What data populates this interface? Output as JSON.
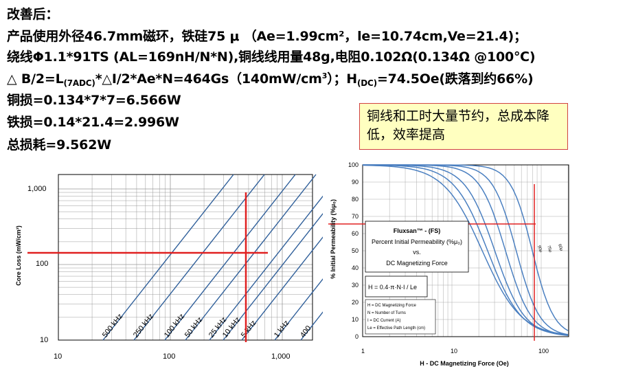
{
  "text": {
    "line1": "改善后：",
    "line2": "产品使用外径46.7mm磁环，铁硅75 μ （Ae=1.99cm²，le=10.74cm,Ve=21.4)；",
    "line3": "绕线Φ1.1*91TS (AL=169nH/N*N),铜线线用量48g,电阻0.102Ω(0.134Ω @100℃)",
    "line4a": "△ B/2=L",
    "line4sub": "(7ADC)",
    "line4b": "*△I/2*Ae*N=464Gs（140mW/cm",
    "line4sup": "3",
    "line4c": "）；H",
    "line4sub2": "(DC)",
    "line4d": "=74.5Oe(跌落到约66%)",
    "line5": "铜损=0.134*7*7=6.566W",
    "line6": "铁损=0.14*21.4=2.996W",
    "line7": "总损耗=9.562W",
    "note": "铜线和工时大量节约，总成本降低，效率提高"
  },
  "chart_left": {
    "ylabel": "Core Loss (mW/cm³)",
    "yticks": [
      "1,000",
      "100",
      "10"
    ],
    "xticks": [
      "10",
      "100",
      "1,000"
    ],
    "freq_labels": [
      "500 kHz",
      "250 kHz",
      "100 kHz",
      "50 kHz",
      "25 kHz",
      "10 kHz",
      "5 kHz",
      "1 kHz",
      "400"
    ]
  },
  "chart_right": {
    "ylabel": "% Initial Permeability (%μ₀)",
    "xlabel": "H - DC Magnetizing Force (Oe)",
    "yticks": [
      "100",
      "90",
      "80",
      "70",
      "60",
      "50",
      "40",
      "30",
      "20",
      "10",
      "0"
    ],
    "xticks": [
      "1",
      "10",
      "100"
    ],
    "curve_labels": [
      "90μ",
      "75μ",
      "60μ"
    ],
    "legend_title": "Fluxsan™ - (FS)",
    "legend_sub1": "Percent Initial Permeability (%μ₀)",
    "legend_sub2": "vs.",
    "legend_sub3": "DC Magnetizing Force",
    "formula": "H = 0.4·π·N·I / Le",
    "defs": [
      "H = DC Magnetizing Force",
      "N = Number of Turns",
      "I = DC Current (A)",
      "Le = Effective Path Length (cm)"
    ]
  },
  "colors": {
    "curve": "#3a6ea5",
    "marker": "#e02020",
    "grid": "#888888"
  }
}
